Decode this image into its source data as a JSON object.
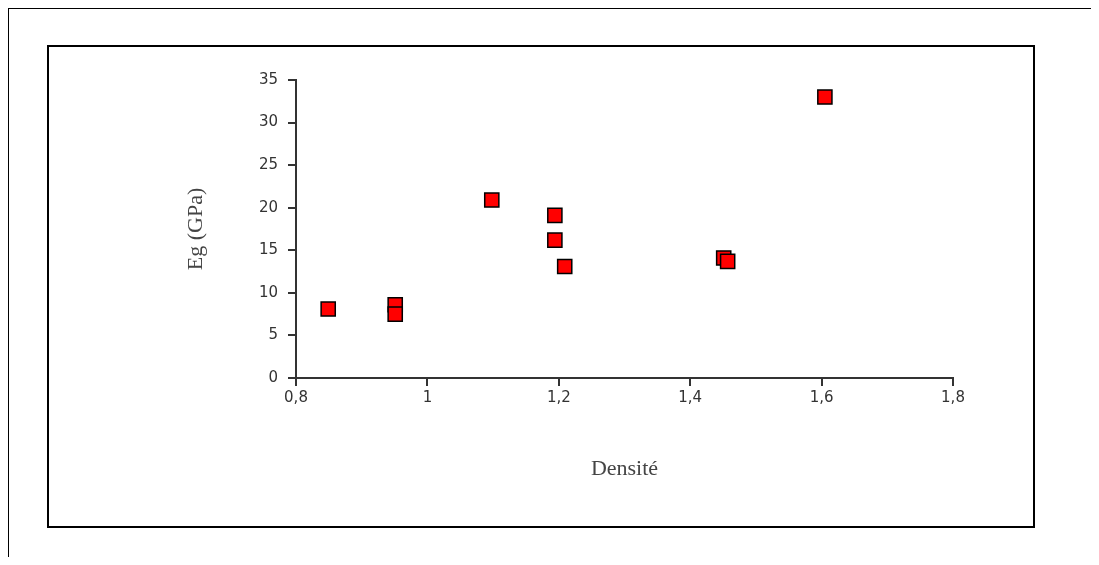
{
  "chart_data": {
    "type": "scatter",
    "xlabel": "Densité",
    "ylabel": "Eg (GPa)",
    "x": [
      0.849,
      0.951,
      0.951,
      1.098,
      1.194,
      1.194,
      1.209,
      1.451,
      1.457,
      1.605
    ],
    "values": [
      8.1,
      8.6,
      7.5,
      20.9,
      19.1,
      16.2,
      13.1,
      14.1,
      13.7,
      33
    ],
    "color": "#ff0000",
    "marker": "square",
    "grid": false,
    "legend": false,
    "xlim": [
      0.8,
      1.8
    ],
    "xticks": [
      {
        "value": 0.8,
        "label": "0,8"
      },
      1,
      {
        "value": 1.2,
        "label": "1,2"
      },
      {
        "value": 1.4,
        "label": "1,4"
      },
      {
        "value": 1.6,
        "label": "1,6"
      },
      {
        "value": 1.8,
        "label": "1,8"
      }
    ],
    "ylim": [
      0,
      35
    ],
    "yticks": [
      0,
      5,
      10,
      15,
      20,
      25,
      30,
      35
    ]
  }
}
